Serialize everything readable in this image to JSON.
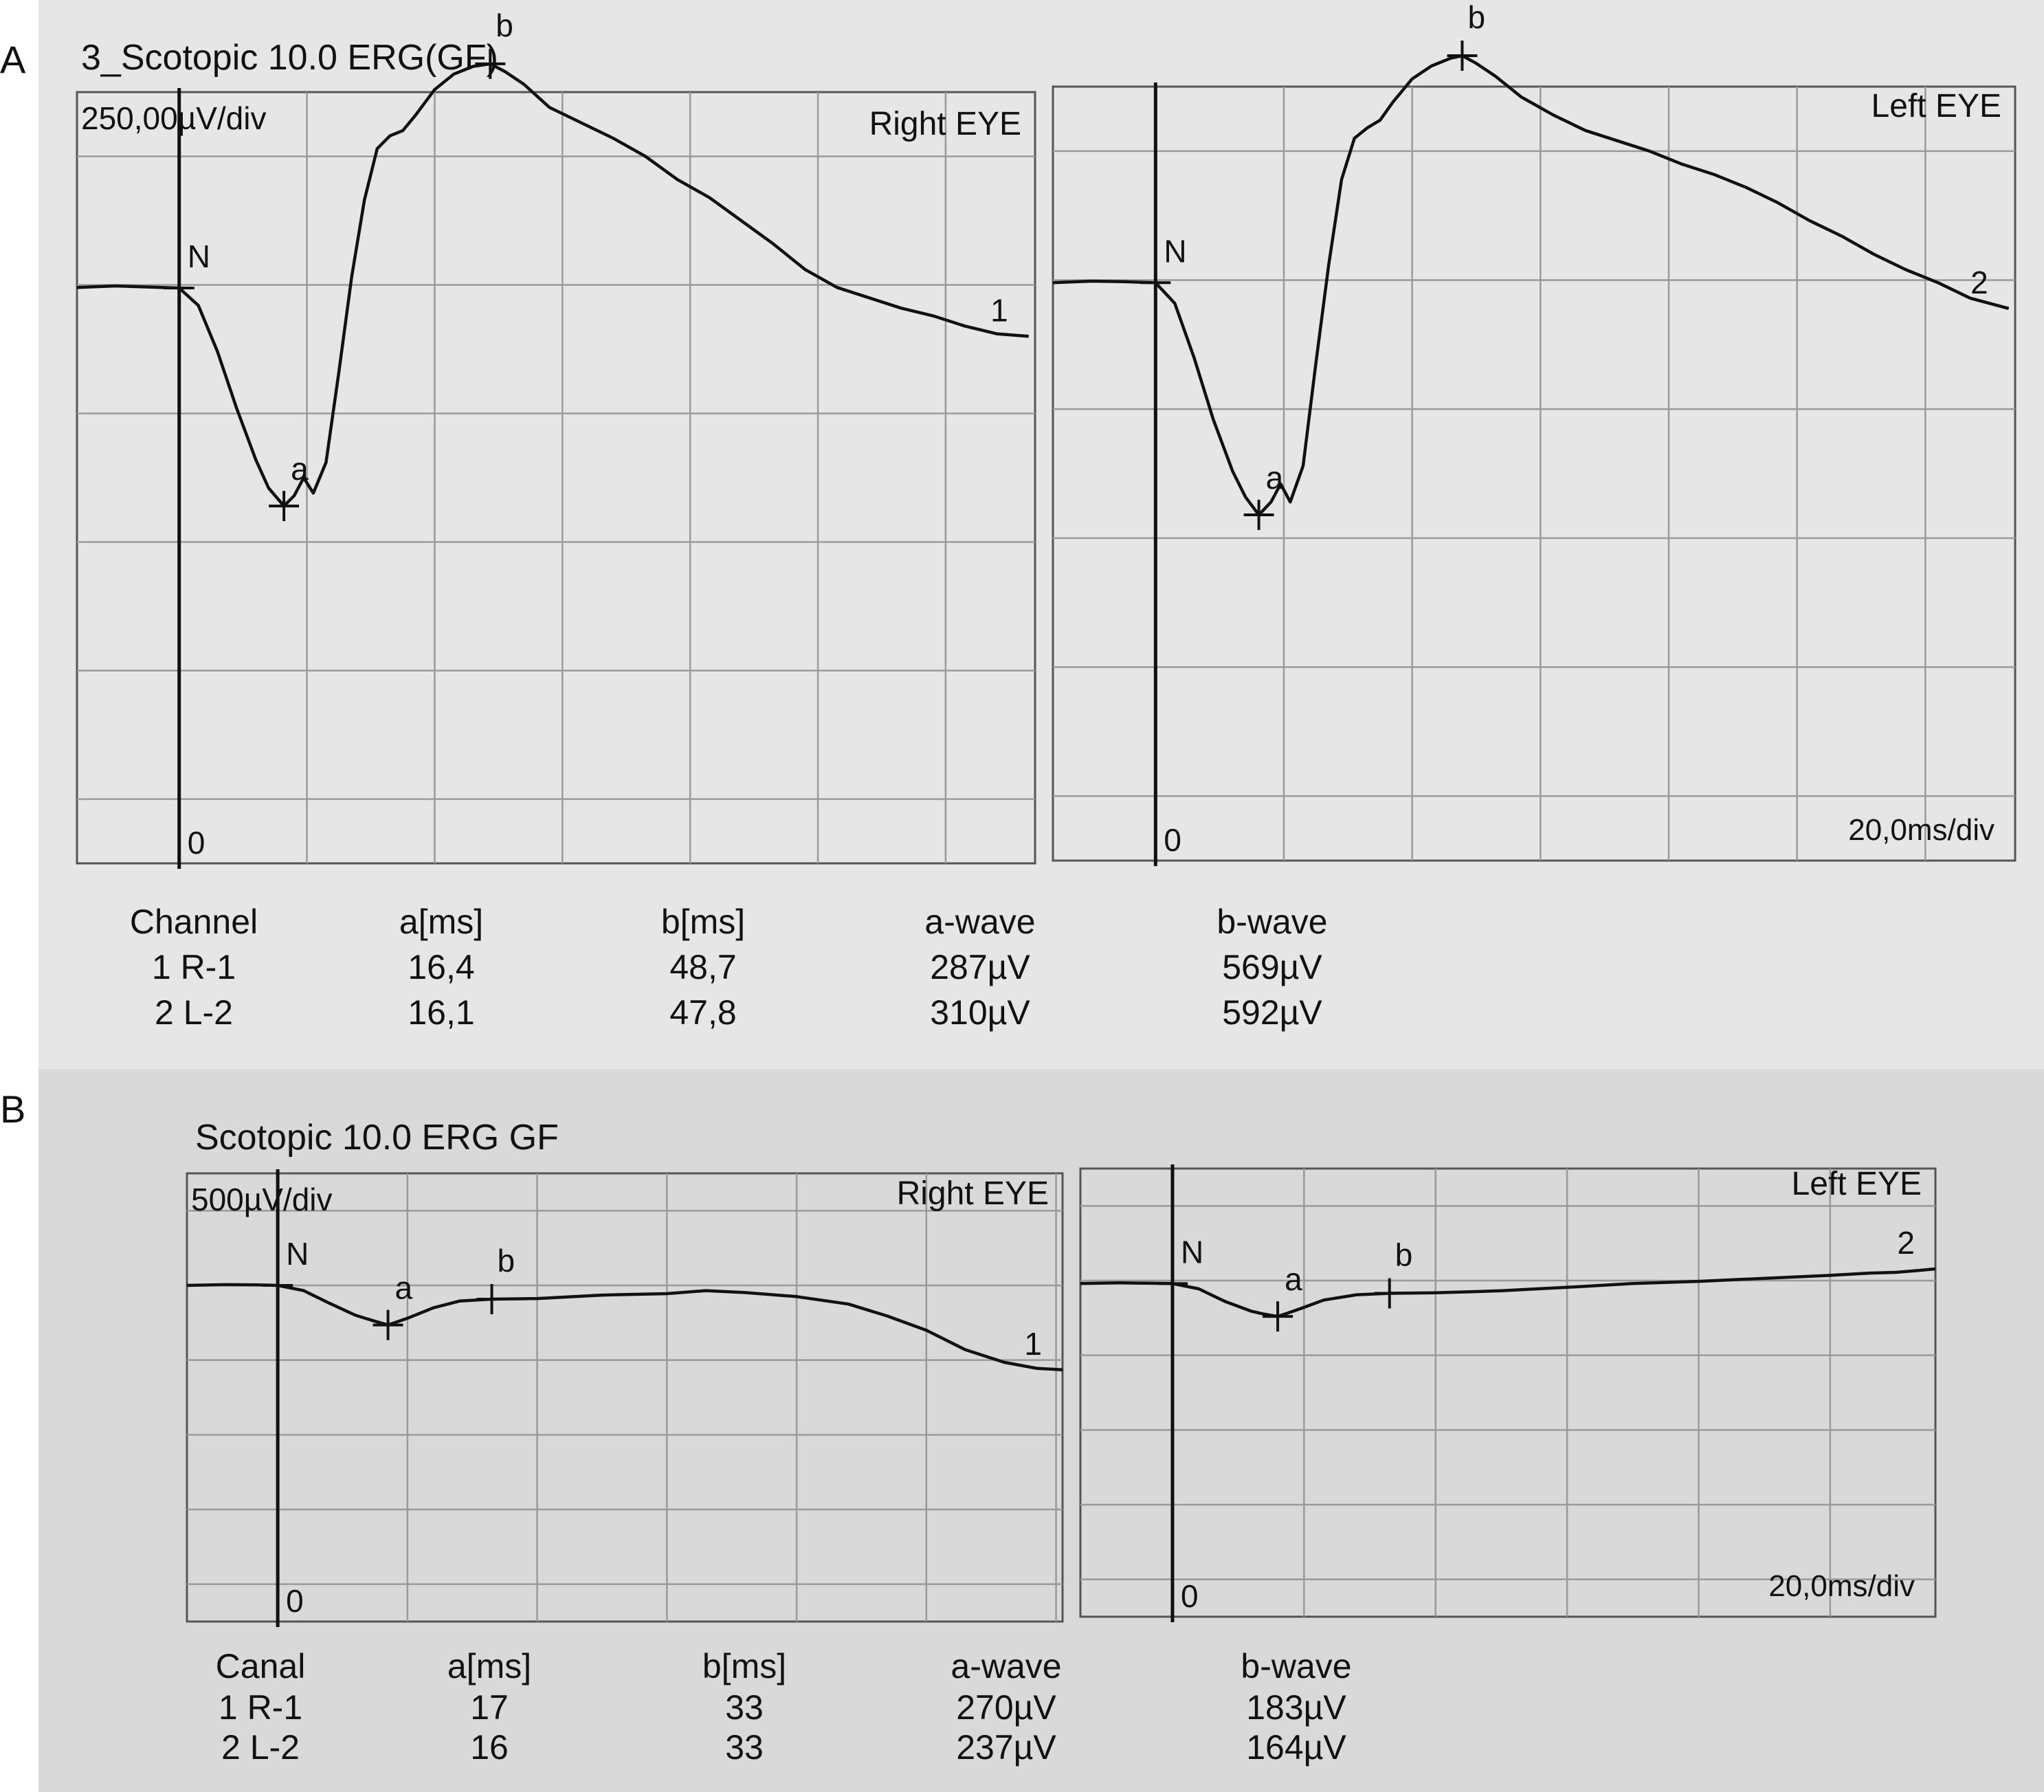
{
  "colors": {
    "panel_a_bg": "#e6e6e6",
    "panel_b_bg": "#d9d9d9",
    "grid": "#9a9a9a",
    "trace": "#111111"
  },
  "panels": [
    {
      "letter": "A",
      "title": "3_Scotopic 10.0 ERG(GF)",
      "amplitude_scale": "250,00µV/div",
      "time_scale": "20,0ms/div",
      "table": {
        "headers": [
          "Channel",
          "a[ms]",
          "b[ms]",
          "a-wave",
          "b-wave"
        ],
        "rows": [
          [
            "1 R-1",
            "16,4",
            "48,7",
            "287µV",
            "569µV"
          ],
          [
            "2 L-2",
            "16,1",
            "47,8",
            "310µV",
            "592µV"
          ]
        ]
      }
    },
    {
      "letter": "B",
      "title": "Scotopic 10.0 ERG GF",
      "amplitude_scale": "500µV/div",
      "time_scale": "20,0ms/div",
      "table": {
        "headers": [
          "Canal",
          "a[ms]",
          "b[ms]",
          "a-wave",
          "b-wave"
        ],
        "rows": [
          [
            "1 R-1",
            "17",
            "33",
            "270µV",
            "183µV"
          ],
          [
            "2 L-2",
            "16",
            "33",
            "237µV",
            "164µV"
          ]
        ]
      }
    }
  ],
  "chart_data": [
    {
      "type": "line",
      "panel": "A",
      "eye": "Right EYE",
      "trace_label": "1",
      "x_unit": "ms",
      "y_unit": "µV",
      "x_per_div": 20,
      "y_per_div": 250,
      "xlim": [
        -16,
        134
      ],
      "ylim": [
        -1125,
        375
      ],
      "points": [
        [
          -16,
          -5
        ],
        [
          -10,
          -2
        ],
        [
          -5,
          -4
        ],
        [
          0,
          -6
        ],
        [
          3,
          -40
        ],
        [
          6,
          -130
        ],
        [
          9,
          -240
        ],
        [
          12,
          -340
        ],
        [
          14,
          -395
        ],
        [
          16.4,
          -430
        ],
        [
          18,
          -410
        ],
        [
          19.5,
          -375
        ],
        [
          21,
          -405
        ],
        [
          23,
          -345
        ],
        [
          25,
          -170
        ],
        [
          27,
          15
        ],
        [
          29,
          165
        ],
        [
          31,
          265
        ],
        [
          33,
          290
        ],
        [
          35,
          300
        ],
        [
          37,
          330
        ],
        [
          40,
          380
        ],
        [
          43,
          410
        ],
        [
          46,
          425
        ],
        [
          48.7,
          430
        ],
        [
          51,
          415
        ],
        [
          54,
          390
        ],
        [
          58,
          345
        ],
        [
          63,
          315
        ],
        [
          68,
          285
        ],
        [
          73,
          250
        ],
        [
          78,
          205
        ],
        [
          83,
          170
        ],
        [
          88,
          125
        ],
        [
          93,
          80
        ],
        [
          98,
          30
        ],
        [
          103,
          -5
        ],
        [
          108,
          -25
        ],
        [
          113,
          -45
        ],
        [
          118,
          -60
        ],
        [
          123,
          -80
        ],
        [
          128,
          -95
        ],
        [
          133,
          -100
        ]
      ],
      "markers": [
        {
          "label": "N",
          "x": 0,
          "y": -6
        },
        {
          "label": "a",
          "x": 16.4,
          "y": -430
        },
        {
          "label": "b",
          "x": 48.7,
          "y": 430
        }
      ],
      "zero_label": "0"
    },
    {
      "type": "line",
      "panel": "A",
      "eye": "Left EYE",
      "trace_label": "2",
      "x_unit": "ms",
      "y_unit": "µV",
      "x_per_div": 20,
      "y_per_div": 250,
      "xlim": [
        -16,
        134
      ],
      "ylim": [
        -1125,
        375
      ],
      "points": [
        [
          -16,
          -5
        ],
        [
          -10,
          -2
        ],
        [
          -5,
          -3
        ],
        [
          0,
          -5
        ],
        [
          3,
          -45
        ],
        [
          6,
          -150
        ],
        [
          9,
          -270
        ],
        [
          12,
          -370
        ],
        [
          14,
          -420
        ],
        [
          16.1,
          -455
        ],
        [
          18,
          -430
        ],
        [
          19.5,
          -395
        ],
        [
          21,
          -430
        ],
        [
          23,
          -360
        ],
        [
          25,
          -160
        ],
        [
          27,
          30
        ],
        [
          29,
          195
        ],
        [
          31,
          275
        ],
        [
          33,
          295
        ],
        [
          35,
          310
        ],
        [
          37,
          345
        ],
        [
          40,
          390
        ],
        [
          43,
          415
        ],
        [
          46,
          430
        ],
        [
          47.8,
          435
        ],
        [
          50,
          420
        ],
        [
          53,
          395
        ],
        [
          57,
          355
        ],
        [
          62,
          320
        ],
        [
          67,
          290
        ],
        [
          72,
          270
        ],
        [
          77,
          250
        ],
        [
          82,
          225
        ],
        [
          87,
          205
        ],
        [
          92,
          180
        ],
        [
          97,
          150
        ],
        [
          102,
          115
        ],
        [
          107,
          85
        ],
        [
          112,
          50
        ],
        [
          117,
          20
        ],
        [
          122,
          -5
        ],
        [
          127,
          -35
        ],
        [
          133,
          -55
        ]
      ],
      "markers": [
        {
          "label": "N",
          "x": 0,
          "y": -5
        },
        {
          "label": "a",
          "x": 16.1,
          "y": -455
        },
        {
          "label": "b",
          "x": 47.8,
          "y": 435
        }
      ],
      "zero_label": "0"
    },
    {
      "type": "line",
      "panel": "B",
      "eye": "Right EYE",
      "trace_label": "1",
      "x_unit": "ms",
      "y_unit": "µV",
      "x_per_div": 20,
      "y_per_div": 500,
      "xlim": [
        -14,
        121
      ],
      "ylim": [
        -2250,
        750
      ],
      "points": [
        [
          -14,
          0
        ],
        [
          -8,
          5
        ],
        [
          -3,
          3
        ],
        [
          0,
          0
        ],
        [
          4,
          -35
        ],
        [
          8,
          -120
        ],
        [
          12,
          -200
        ],
        [
          15,
          -240
        ],
        [
          17,
          -265
        ],
        [
          20,
          -220
        ],
        [
          24,
          -150
        ],
        [
          28,
          -105
        ],
        [
          33,
          -92
        ],
        [
          40,
          -88
        ],
        [
          50,
          -65
        ],
        [
          60,
          -55
        ],
        [
          66,
          -35
        ],
        [
          72,
          -48
        ],
        [
          80,
          -75
        ],
        [
          88,
          -125
        ],
        [
          94,
          -205
        ],
        [
          100,
          -300
        ],
        [
          106,
          -430
        ],
        [
          112,
          -515
        ],
        [
          117,
          -555
        ],
        [
          121,
          -565
        ]
      ],
      "markers": [
        {
          "label": "N",
          "x": 0,
          "y": 0
        },
        {
          "label": "a",
          "x": 17,
          "y": -265
        },
        {
          "label": "b",
          "x": 33,
          "y": -92
        }
      ],
      "zero_label": "0"
    },
    {
      "type": "line",
      "panel": "B",
      "eye": "Left EYE",
      "trace_label": "2",
      "x_unit": "ms",
      "y_unit": "µV",
      "x_per_div": 20,
      "y_per_div": 500,
      "xlim": [
        -14,
        116
      ],
      "ylim": [
        -2250,
        750
      ],
      "points": [
        [
          -14,
          -20
        ],
        [
          -8,
          -15
        ],
        [
          -3,
          -18
        ],
        [
          0,
          -20
        ],
        [
          4,
          -55
        ],
        [
          8,
          -140
        ],
        [
          12,
          -205
        ],
        [
          14,
          -225
        ],
        [
          16,
          -240
        ],
        [
          19,
          -195
        ],
        [
          23,
          -130
        ],
        [
          28,
          -95
        ],
        [
          33,
          -85
        ],
        [
          40,
          -82
        ],
        [
          50,
          -68
        ],
        [
          60,
          -45
        ],
        [
          70,
          -20
        ],
        [
          80,
          -5
        ],
        [
          90,
          15
        ],
        [
          100,
          35
        ],
        [
          106,
          50
        ],
        [
          110,
          55
        ],
        [
          114,
          70
        ],
        [
          116,
          78
        ]
      ],
      "markers": [
        {
          "label": "N",
          "x": 0,
          "y": -20
        },
        {
          "label": "a",
          "x": 16,
          "y": -240
        },
        {
          "label": "b",
          "x": 33,
          "y": -85
        }
      ],
      "zero_label": "0"
    }
  ]
}
